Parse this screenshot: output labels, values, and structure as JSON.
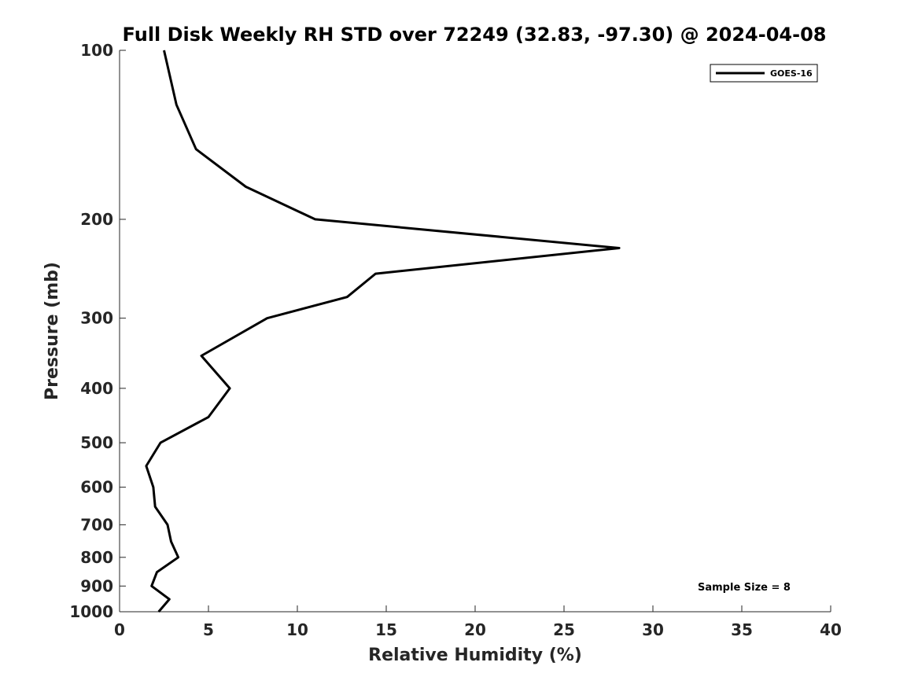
{
  "chart_data": {
    "type": "line",
    "title": "Full Disk Weekly RH STD over 72249 (32.83, -97.30) @ 2024-04-08",
    "xlabel": "Relative Humidity (%)",
    "ylabel": "Pressure (mb)",
    "xlim": [
      0,
      40
    ],
    "ylim": [
      100,
      1000
    ],
    "y_scale": "log",
    "y_reversed": true,
    "xticks": [
      0,
      5,
      10,
      15,
      20,
      25,
      30,
      35,
      40
    ],
    "yticks": [
      100,
      200,
      300,
      400,
      500,
      600,
      700,
      800,
      900,
      1000
    ],
    "grid": false,
    "legend_position": "top-right",
    "series": [
      {
        "name": "GOES-16",
        "color": "#000000",
        "points": [
          {
            "x": 2.5,
            "y": 100
          },
          {
            "x": 3.2,
            "y": 125
          },
          {
            "x": 4.3,
            "y": 150
          },
          {
            "x": 7.1,
            "y": 175
          },
          {
            "x": 11.0,
            "y": 200
          },
          {
            "x": 28.1,
            "y": 225
          },
          {
            "x": 14.4,
            "y": 250
          },
          {
            "x": 12.8,
            "y": 275
          },
          {
            "x": 8.3,
            "y": 300
          },
          {
            "x": 4.6,
            "y": 350
          },
          {
            "x": 6.2,
            "y": 400
          },
          {
            "x": 5.0,
            "y": 450
          },
          {
            "x": 2.3,
            "y": 500
          },
          {
            "x": 1.5,
            "y": 550
          },
          {
            "x": 1.9,
            "y": 600
          },
          {
            "x": 2.0,
            "y": 650
          },
          {
            "x": 2.7,
            "y": 700
          },
          {
            "x": 2.9,
            "y": 750
          },
          {
            "x": 3.3,
            "y": 800
          },
          {
            "x": 2.1,
            "y": 850
          },
          {
            "x": 1.8,
            "y": 900
          },
          {
            "x": 2.8,
            "y": 950
          },
          {
            "x": 2.2,
            "y": 1000
          }
        ]
      }
    ],
    "legend": {
      "label": "GOES-16"
    },
    "annotation": "Sample Size = 8"
  }
}
